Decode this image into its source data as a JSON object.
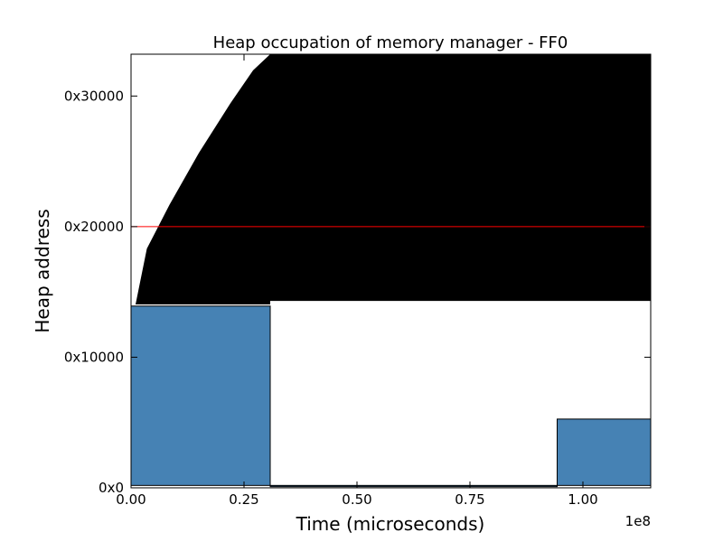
{
  "chart_data": {
    "type": "area",
    "title": "Heap occupation of memory manager - FF0",
    "xlabel": "Time (microseconds)",
    "ylabel": "Heap address",
    "x_offset_label": "1e8",
    "xlim": [
      0,
      1.15
    ],
    "ylim": [
      0,
      217600
    ],
    "x_ticks": [
      {
        "value": 0.0,
        "label": "0.00"
      },
      {
        "value": 0.25,
        "label": "0.25"
      },
      {
        "value": 0.5,
        "label": "0.50"
      },
      {
        "value": 0.75,
        "label": "0.75"
      },
      {
        "value": 1.0,
        "label": "1.00"
      }
    ],
    "y_ticks": [
      {
        "value": 0,
        "label": "0x0"
      },
      {
        "value": 65536,
        "label": "0x10000"
      },
      {
        "value": 131072,
        "label": "0x20000"
      },
      {
        "value": 196608,
        "label": "0x30000"
      }
    ],
    "heap_limit_line": {
      "y": 131072,
      "color": "#ff0000"
    },
    "occupied_fill": {
      "color": "#000000",
      "lower_boundary": [
        [
          0.0,
          92000
        ],
        [
          0.308,
          92000
        ],
        [
          0.308,
          93800
        ],
        [
          1.15,
          93800
        ]
      ],
      "upper_boundary": [
        [
          0.01,
          92000
        ],
        [
          0.035,
          120000
        ],
        [
          0.06,
          131000
        ],
        [
          0.085,
          142000
        ],
        [
          0.15,
          168000
        ],
        [
          0.22,
          193000
        ],
        [
          0.27,
          209500
        ],
        [
          0.308,
          217600
        ],
        [
          1.15,
          217600
        ]
      ]
    },
    "blocks": [
      {
        "x0": 0.0,
        "x1": 0.308,
        "y0": 1200,
        "y1": 91200,
        "color": "#4682b4"
      },
      {
        "x0": 0.943,
        "x1": 1.15,
        "y0": 1200,
        "y1": 34500,
        "color": "#4682b4"
      },
      {
        "x0": 0.308,
        "x1": 0.943,
        "y0": 600,
        "y1": 1200,
        "color": "#4682b4"
      }
    ]
  }
}
